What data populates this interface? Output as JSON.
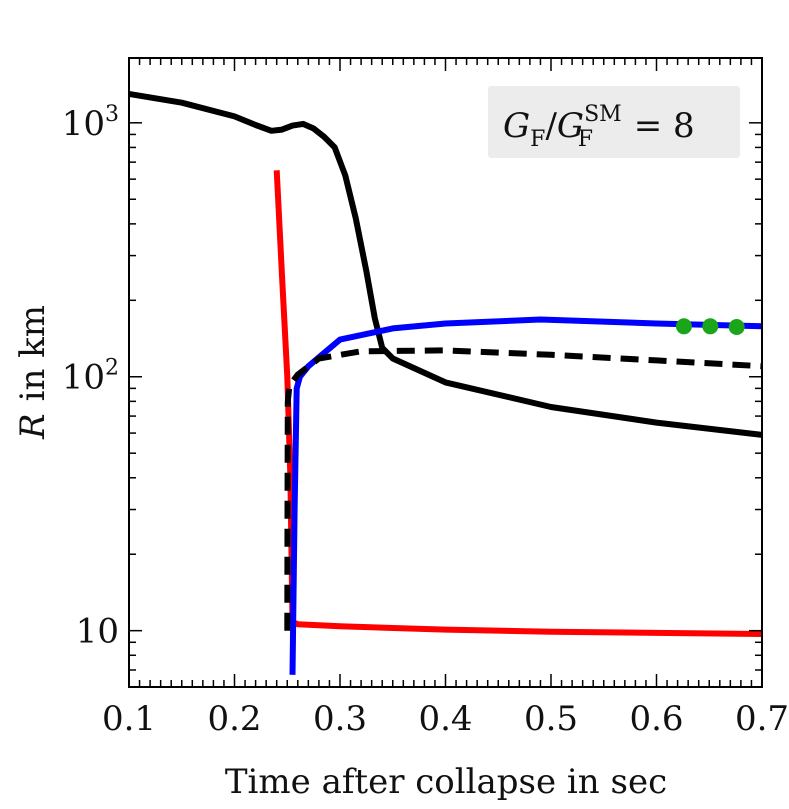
{
  "chart_data": {
    "type": "line",
    "title": "",
    "xlabel": "Time after collapse in sec",
    "ylabel_var": "R",
    "ylabel_rest": "in km",
    "xlim": [
      0.1,
      0.7
    ],
    "ylim": [
      6,
      1800
    ],
    "yscale": "log",
    "grid": false,
    "xticks": [
      {
        "value": 0.1,
        "label": "0.1"
      },
      {
        "value": 0.2,
        "label": "0.2"
      },
      {
        "value": 0.3,
        "label": "0.3"
      },
      {
        "value": 0.4,
        "label": "0.4"
      },
      {
        "value": 0.5,
        "label": "0.5"
      },
      {
        "value": 0.6,
        "label": "0.6"
      },
      {
        "value": 0.7,
        "label": "0.7"
      }
    ],
    "yticks": [
      {
        "value": 10,
        "base": "10",
        "exp": ""
      },
      {
        "value": 100,
        "base": "10",
        "exp": "2"
      },
      {
        "value": 1000,
        "base": "10",
        "exp": "3"
      }
    ],
    "annotation": {
      "g": "G",
      "sub": "F",
      "slash": "/",
      "sup": "SM",
      "rest": " = 8",
      "placement": "top-right"
    },
    "series": [
      {
        "color": "#000000",
        "dash": false,
        "x": [
          0.1,
          0.15,
          0.2,
          0.22,
          0.235,
          0.245,
          0.255,
          0.265,
          0.275,
          0.285,
          0.295,
          0.305,
          0.315,
          0.325,
          0.333,
          0.34,
          0.35,
          0.4,
          0.5,
          0.6,
          0.7
        ],
        "y": [
          1300,
          1200,
          1060,
          980,
          930,
          940,
          975,
          990,
          950,
          880,
          800,
          620,
          420,
          260,
          170,
          130,
          118,
          95,
          76,
          66,
          59
        ]
      },
      {
        "color": "#ff0000",
        "dash": false,
        "x": [
          0.24,
          0.245,
          0.25,
          0.253,
          0.255,
          0.26,
          0.3,
          0.4,
          0.5,
          0.6,
          0.7
        ],
        "y": [
          650,
          250,
          100,
          40,
          10.8,
          10.6,
          10.4,
          10.1,
          9.9,
          9.8,
          9.7
        ]
      },
      {
        "color": "#0000ff",
        "dash": false,
        "x": [
          0.255,
          0.257,
          0.259,
          0.262,
          0.27,
          0.3,
          0.35,
          0.4,
          0.49,
          0.6,
          0.7
        ],
        "y": [
          6.7,
          30,
          90,
          100,
          110,
          140,
          155,
          162,
          168,
          162,
          158
        ]
      },
      {
        "color": "#000000",
        "dash": true,
        "x": [
          0.25,
          0.2502,
          0.2505,
          0.252,
          0.26,
          0.28,
          0.32,
          0.4,
          0.5,
          0.6,
          0.7
        ],
        "y": [
          10,
          30,
          80,
          92,
          102,
          118,
          126,
          127,
          122,
          116,
          110
        ]
      }
    ],
    "markers": {
      "color": "#1aa51a",
      "x": [
        0.626,
        0.651,
        0.676
      ],
      "y": [
        158,
        158,
        157
      ]
    }
  }
}
